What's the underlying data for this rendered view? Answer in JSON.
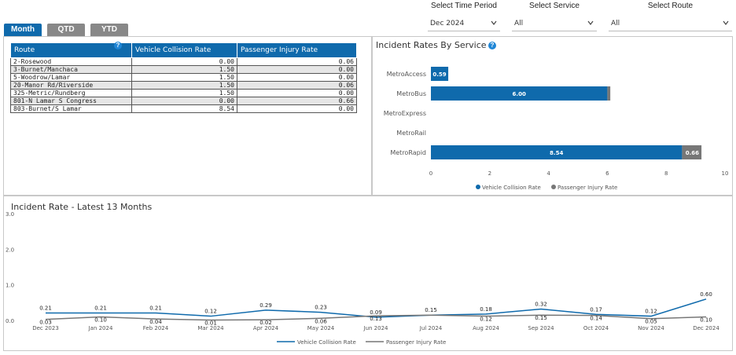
{
  "tabs": [
    {
      "label": "Month",
      "active": true
    },
    {
      "label": "QTD",
      "active": false
    },
    {
      "label": "YTD",
      "active": false
    }
  ],
  "filters": {
    "time_period": {
      "label": "Select Time Period",
      "value": "Dec 2024"
    },
    "service": {
      "label": "Select Service",
      "value": "All"
    },
    "route": {
      "label": "Select Route",
      "value": "All"
    }
  },
  "route_table": {
    "columns": [
      "Route",
      "Vehicle Collision Rate",
      "Passenger Injury Rate"
    ],
    "rows": [
      [
        "2-Rosewood",
        "0.00",
        "0.06"
      ],
      [
        "3-Burnet/Manchaca",
        "1.50",
        "0.00"
      ],
      [
        "5-Woodrow/Lamar",
        "1.50",
        "0.00"
      ],
      [
        "20-Manor Rd/Riverside",
        "1.50",
        "0.06"
      ],
      [
        "325-Metric/Rundberg",
        "1.50",
        "0.00"
      ],
      [
        "801-N Lamar S Congress",
        "0.00",
        "0.66"
      ],
      [
        "803-Burnet/S Lamar",
        "8.54",
        "0.00"
      ]
    ]
  },
  "colors": {
    "accent": "#0f6aac",
    "vehicle": "#0f6aac",
    "passenger": "#777777",
    "help": "#1f86d6"
  },
  "chart_data": [
    {
      "type": "bar",
      "title": "Incident Rates By Service",
      "orientation": "horizontal",
      "stacked": true,
      "categories": [
        "MetroAccess",
        "MetroBus",
        "MetroExpress",
        "MetroRail",
        "MetroRapid"
      ],
      "series": [
        {
          "name": "Vehicle Collision Rate",
          "values": [
            0.59,
            6.0,
            0,
            0,
            8.54
          ],
          "labels": [
            "0.59",
            "6.00",
            "",
            "",
            "8.54"
          ]
        },
        {
          "name": "Passenger Injury Rate",
          "values": [
            0,
            0.1,
            0,
            0,
            0.66
          ],
          "labels": [
            "",
            "",
            "",
            "",
            "0.66"
          ]
        }
      ],
      "xticks": [
        "0",
        "2",
        "4",
        "6",
        "8",
        "10"
      ],
      "xlim": [
        0,
        10
      ],
      "legend": "bottom"
    },
    {
      "type": "line",
      "title": "Incident Rate - Latest 13 Months",
      "categories": [
        "Dec 2023",
        "Jan 2024",
        "Feb 2024",
        "Mar 2024",
        "Apr 2024",
        "May 2024",
        "Jun 2024",
        "Jul 2024",
        "Aug 2024",
        "Sep 2024",
        "Oct 2024",
        "Nov 2024",
        "Dec 2024"
      ],
      "series": [
        {
          "name": "Vehicle Collision Rate",
          "values": [
            0.21,
            0.21,
            0.21,
            0.12,
            0.29,
            0.23,
            0.09,
            0.15,
            0.18,
            0.32,
            0.17,
            0.12,
            0.6
          ],
          "labels": [
            "0.21",
            "0.21",
            "0.21",
            "0.12",
            "0.29",
            "0.23",
            "0.09",
            "0.15",
            "0.18",
            "0.32",
            "0.17",
            "0.12",
            "0.60"
          ]
        },
        {
          "name": "Passenger Injury Rate",
          "values": [
            0.03,
            0.1,
            0.04,
            0.01,
            0.02,
            0.06,
            0.13,
            0.15,
            0.12,
            0.15,
            0.14,
            0.05,
            0.1
          ],
          "labels": [
            "0.03",
            "0.10",
            "0.04",
            "0.01",
            "0.02",
            "0.06",
            "0.13",
            "",
            "0.12",
            "0.15",
            "0.14",
            "0.05",
            "0.10"
          ]
        }
      ],
      "yticks": [
        "0.0",
        "1.0",
        "2.0",
        "3.0"
      ],
      "ylim": [
        0,
        3
      ],
      "legend": "bottom"
    }
  ]
}
